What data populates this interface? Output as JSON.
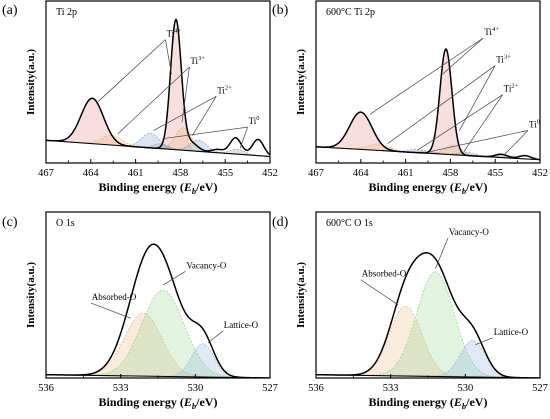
{
  "chart_data": [
    {
      "type": "line",
      "panel_letter": "(a)",
      "title": "Ti 2p",
      "xlabel": "Binding energy",
      "xlabel_var": "E",
      "xlabel_sub": "b",
      "xlabel_unit": "/eV",
      "ylabel": "Intensity(a.u.)",
      "xlim": [
        467,
        452
      ],
      "ylim": [
        0,
        1
      ],
      "x_ticks": [
        "467",
        "464",
        "461",
        "458",
        "455",
        "452"
      ],
      "x_tick_values": [
        467,
        464,
        461,
        458,
        455,
        452
      ],
      "envelope": {
        "background": {
          "x": [
            467,
            452
          ],
          "y": [
            0.14,
            0.04
          ]
        },
        "peaks": [
          {
            "center": 463.9,
            "height": 0.28,
            "width": 0.75
          },
          {
            "center": 458.3,
            "height": 0.8,
            "width": 0.36
          },
          {
            "center": 457.3,
            "height": 0.05,
            "width": 0.45
          },
          {
            "center": 455.5,
            "height": 0.02,
            "width": 0.4
          },
          {
            "center": 454.3,
            "height": 0.1,
            "width": 0.38
          },
          {
            "center": 452.8,
            "height": 0.1,
            "width": 0.38
          }
        ]
      },
      "components": [
        {
          "label": "Ti4+",
          "name": "Ti",
          "sup": "4+",
          "color": "#e88a8a",
          "peaks": [
            {
              "center": 463.9,
              "height": 0.28,
              "width": 0.75
            },
            {
              "center": 458.3,
              "height": 0.8,
              "width": 0.36
            }
          ]
        },
        {
          "label": "Ti3+",
          "name": "Ti",
          "sup": "3+",
          "color": "#e8b27a",
          "peaks": [
            {
              "center": 462.6,
              "height": 0.06,
              "width": 0.7
            },
            {
              "center": 457.8,
              "height": 0.14,
              "width": 0.55
            }
          ]
        },
        {
          "label": "Ti2+",
          "name": "Ti",
          "sup": "2+",
          "color": "#7aa3d8",
          "peaks": [
            {
              "center": 460.0,
              "height": 0.09,
              "width": 0.6
            },
            {
              "center": 456.8,
              "height": 0.07,
              "width": 0.55
            }
          ]
        },
        {
          "label": "Ti0",
          "name": "Ti",
          "sup": "0",
          "color": "#9c9c9c",
          "peaks": [
            {
              "center": 459.3,
              "height": 0.03,
              "width": 0.5
            },
            {
              "center": 454.2,
              "height": 0.03,
              "width": 0.5
            }
          ]
        }
      ],
      "annotations": [
        {
          "component": 0,
          "text_pos": [
            459.0,
            0.78
          ],
          "targets": [
            [
              463.5,
              0.38
            ],
            [
              458.6,
              0.55
            ]
          ]
        },
        {
          "component": 1,
          "text_pos": [
            457.4,
            0.61
          ],
          "targets": [
            [
              462.2,
              0.18
            ],
            [
              457.9,
              0.25
            ]
          ]
        },
        {
          "component": 2,
          "text_pos": [
            455.6,
            0.43
          ],
          "targets": [
            [
              459.8,
              0.2
            ],
            [
              457.2,
              0.17
            ]
          ]
        },
        {
          "component": 3,
          "text_pos": [
            453.5,
            0.24
          ],
          "targets": [
            [
              459.2,
              0.15
            ],
            [
              454.0,
              0.09
            ]
          ]
        }
      ]
    },
    {
      "type": "line",
      "panel_letter": "(b)",
      "title": "600°C Ti 2p",
      "xlabel": "Binding energy",
      "xlabel_var": "E",
      "xlabel_sub": "b",
      "xlabel_unit": "/eV",
      "ylabel": "Intensity(a.u.)",
      "xlim": [
        467,
        452
      ],
      "ylim": [
        0,
        1
      ],
      "x_ticks": [
        "467",
        "464",
        "461",
        "458",
        "455",
        "452"
      ],
      "x_tick_values": [
        467,
        464,
        461,
        458,
        455,
        452
      ],
      "envelope": {
        "background": {
          "x": [
            467,
            452
          ],
          "y": [
            0.1,
            0.02
          ]
        },
        "peaks": [
          {
            "center": 464.0,
            "height": 0.23,
            "width": 0.75
          },
          {
            "center": 458.3,
            "height": 0.65,
            "width": 0.4
          },
          {
            "center": 454.6,
            "height": 0.02,
            "width": 0.4
          },
          {
            "center": 453.0,
            "height": 0.02,
            "width": 0.4
          }
        ]
      },
      "components": [
        {
          "label": "Ti4+",
          "name": "Ti",
          "sup": "4+",
          "color": "#e88a8a",
          "peaks": [
            {
              "center": 464.0,
              "height": 0.23,
              "width": 0.75
            },
            {
              "center": 458.3,
              "height": 0.65,
              "width": 0.4
            }
          ]
        },
        {
          "label": "Ti3+",
          "name": "Ti",
          "sup": "3+",
          "color": "#e8b27a",
          "peaks": [
            {
              "center": 462.8,
              "height": 0.04,
              "width": 0.7
            },
            {
              "center": 457.8,
              "height": 0.06,
              "width": 0.55
            }
          ]
        },
        {
          "label": "Ti2+",
          "name": "Ti",
          "sup": "2+",
          "color": "#7aa3d8",
          "peaks": [
            {
              "center": 460.2,
              "height": 0.02,
              "width": 0.6
            },
            {
              "center": 456.9,
              "height": 0.02,
              "width": 0.55
            }
          ]
        },
        {
          "label": "Ti0",
          "name": "Ti",
          "sup": "0",
          "color": "#9c9c9c",
          "peaks": [
            {
              "center": 459.5,
              "height": 0.015,
              "width": 0.5
            },
            {
              "center": 454.3,
              "height": 0.015,
              "width": 0.5
            }
          ]
        }
      ],
      "annotations": [
        {
          "component": 0,
          "text_pos": [
            455.8,
            0.79
          ],
          "targets": [
            [
              463.4,
              0.3
            ],
            [
              458.5,
              0.55
            ]
          ]
        },
        {
          "component": 1,
          "text_pos": [
            455.0,
            0.62
          ],
          "targets": [
            [
              462.2,
              0.12
            ],
            [
              457.4,
              0.2
            ]
          ]
        },
        {
          "component": 2,
          "text_pos": [
            454.5,
            0.44
          ],
          "targets": [
            [
              460.2,
              0.08
            ],
            [
              457.1,
              0.07
            ]
          ]
        },
        {
          "component": 3,
          "text_pos": [
            452.8,
            0.22
          ],
          "targets": [
            [
              459.4,
              0.07
            ],
            [
              454.4,
              0.05
            ]
          ]
        }
      ]
    },
    {
      "type": "line",
      "panel_letter": "(c)",
      "title": "O 1s",
      "xlabel": "Binding energy",
      "xlabel_var": "E",
      "xlabel_sub": "b",
      "xlabel_unit": "/eV",
      "ylabel": "Intensity(a.u.)",
      "xlim": [
        536,
        527
      ],
      "ylim": [
        0,
        1
      ],
      "x_ticks": [
        "536",
        "533",
        "530",
        "527"
      ],
      "x_tick_values": [
        536,
        533,
        530,
        527
      ],
      "envelope": {
        "background": {
          "x": [
            536,
            527
          ],
          "y": [
            0.02,
            0.0
          ]
        },
        "peaks": [
          {
            "center": 532.1,
            "height": 0.38,
            "width": 0.75
          },
          {
            "center": 531.3,
            "height": 0.52,
            "width": 0.85
          },
          {
            "center": 529.7,
            "height": 0.2,
            "width": 0.45
          }
        ]
      },
      "components": [
        {
          "label": "Absorbed-O",
          "name": "Absorbed-O",
          "sup": "",
          "color": "#f0b880",
          "peaks": [
            {
              "center": 532.1,
              "height": 0.38,
              "width": 0.75
            }
          ]
        },
        {
          "label": "Vacancy-O",
          "name": "Vacancy-O",
          "sup": "",
          "color": "#8fd68f",
          "peaks": [
            {
              "center": 531.3,
              "height": 0.52,
              "width": 0.85
            }
          ]
        },
        {
          "label": "Lattice-O",
          "name": "Lattice-O",
          "sup": "",
          "color": "#8fb3e0",
          "peaks": [
            {
              "center": 529.7,
              "height": 0.2,
              "width": 0.45
            }
          ]
        }
      ],
      "annotations": [
        {
          "component": 0,
          "text_pos": [
            534.2,
            0.47
          ],
          "targets": [
            [
              532.6,
              0.36
            ]
          ]
        },
        {
          "component": 1,
          "text_pos": [
            530.4,
            0.66
          ],
          "targets": [
            [
              531.3,
              0.56
            ]
          ]
        },
        {
          "component": 2,
          "text_pos": [
            528.9,
            0.3
          ],
          "targets": [
            [
              529.5,
              0.21
            ]
          ]
        }
      ]
    },
    {
      "type": "line",
      "panel_letter": "(d)",
      "title": "600°C O 1s",
      "xlabel": "Binding energy",
      "xlabel_var": "E",
      "xlabel_sub": "b",
      "xlabel_unit": "/eV",
      "ylabel": "Intensity(a.u.)",
      "xlim": [
        536,
        527
      ],
      "ylim": [
        0,
        1
      ],
      "x_ticks": [
        "536",
        "533",
        "530",
        "527"
      ],
      "x_tick_values": [
        536,
        533,
        530,
        527
      ],
      "envelope": {
        "background": {
          "x": [
            536,
            527
          ],
          "y": [
            0.02,
            0.0
          ]
        },
        "peaks": [
          {
            "center": 532.4,
            "height": 0.42,
            "width": 0.65
          },
          {
            "center": 531.2,
            "height": 0.63,
            "width": 0.75
          },
          {
            "center": 529.7,
            "height": 0.22,
            "width": 0.5
          }
        ]
      },
      "components": [
        {
          "label": "Absorbed-O",
          "name": "Absorbed-O",
          "sup": "",
          "color": "#f0b880",
          "peaks": [
            {
              "center": 532.4,
              "height": 0.42,
              "width": 0.65
            }
          ]
        },
        {
          "label": "Vacancy-O",
          "name": "Vacancy-O",
          "sup": "",
          "color": "#8fd68f",
          "peaks": [
            {
              "center": 531.2,
              "height": 0.63,
              "width": 0.75
            }
          ]
        },
        {
          "label": "Lattice-O",
          "name": "Lattice-O",
          "sup": "",
          "color": "#8fb3e0",
          "peaks": [
            {
              "center": 529.7,
              "height": 0.22,
              "width": 0.5
            }
          ]
        }
      ],
      "annotations": [
        {
          "component": 0,
          "text_pos": [
            534.2,
            0.61
          ],
          "targets": [
            [
              532.7,
              0.44
            ]
          ]
        },
        {
          "component": 1,
          "text_pos": [
            530.7,
            0.86
          ],
          "targets": [
            [
              531.2,
              0.66
            ]
          ]
        },
        {
          "component": 2,
          "text_pos": [
            528.9,
            0.26
          ],
          "targets": [
            [
              529.6,
              0.2
            ]
          ]
        }
      ]
    }
  ]
}
